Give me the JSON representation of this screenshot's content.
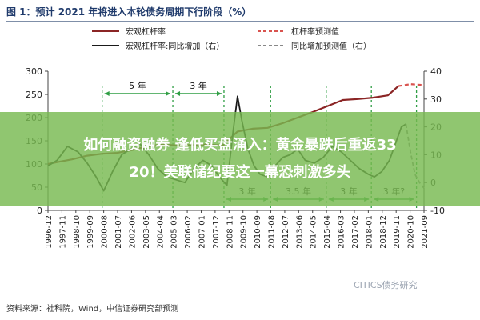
{
  "figure_title": "图 1：预计 2021 年将进入本轮债务周期下行阶段（%）",
  "source_note": "资料来源：社科院，Wind，中信证券研究部预测",
  "watermark": "CITICS债务研究",
  "banner": {
    "line1": "如何融资融券 逢低买盘涌入：黄金暴跌后重返33",
    "line2": "20！美联储纪要这一幕恐刺激多头"
  },
  "colors": {
    "leverage": "#8b2525",
    "leverage_forecast": "#d9534f",
    "yoy": "#1a1a1a",
    "yoy_forecast": "#888888",
    "cycle_marker": "#2f9e44",
    "banner": "#78b950"
  },
  "chart_data": {
    "type": "line",
    "x_ticks": [
      "1996-12",
      "1997-11",
      "1998-10",
      "1999-09",
      "2000-08",
      "2001-07",
      "2002-06",
      "2003-05",
      "2004-04",
      "2005-03",
      "2006-02",
      "2007-01",
      "2007-12",
      "2008-11",
      "2009-10",
      "2010-09",
      "2011-08",
      "2012-07",
      "2013-06",
      "2014-05",
      "2015-04",
      "2016-03",
      "2017-02",
      "2018-01",
      "2018-12",
      "2019-11",
      "2020-10",
      "2021-09"
    ],
    "y_left": {
      "min": 0,
      "max": 300,
      "ticks": [
        0,
        50,
        100,
        150,
        200,
        250,
        300
      ]
    },
    "y_right": {
      "min": -10,
      "max": 40,
      "ticks": [
        -10,
        0,
        10,
        20,
        30,
        40
      ]
    },
    "legend": [
      {
        "label": "宏观杠杆率",
        "style": "solid",
        "color": "#8b2525"
      },
      {
        "label": "杠杆率预测值",
        "style": "dashed",
        "color": "#d9534f"
      },
      {
        "label": "宏观杠杆率:同比增加（右）",
        "style": "solid",
        "color": "#1a1a1a"
      },
      {
        "label": "同比增加预测值（右）",
        "style": "dashed",
        "color": "#888888"
      }
    ],
    "series": [
      {
        "name": "宏观杠杆率",
        "axis": "left",
        "x": [
          1996.9,
          1997.5,
          1998.5,
          1999.5,
          2000.5,
          2001.5,
          2002.5,
          2003.5,
          2004.5,
          2005.5,
          2006.5,
          2007.5,
          2008.5,
          2009.5,
          2010.5,
          2011.5,
          2012.5,
          2013.5,
          2014.5,
          2015.5,
          2016.5,
          2017.5,
          2018.5,
          2019.5,
          2020.2
        ],
        "values": [
          100,
          104,
          110,
          118,
          122,
          124,
          130,
          138,
          142,
          140,
          141,
          142,
          140,
          170,
          176,
          178,
          188,
          200,
          212,
          225,
          238,
          240,
          243,
          248,
          268
        ]
      },
      {
        "name": "杠杆率预测值",
        "axis": "left",
        "x": [
          2020.2,
          2020.6,
          2021.0,
          2021.5,
          2021.9
        ],
        "values": [
          268,
          270,
          272,
          271,
          270
        ]
      },
      {
        "name": "宏观杠杆率:同比增加（右）",
        "axis": "right",
        "x": [
          1996.9,
          1997.5,
          1998.2,
          1998.9,
          1999.5,
          2000.1,
          2000.6,
          2001.2,
          2001.8,
          2002.4,
          2003.0,
          2003.6,
          2004.2,
          2004.8,
          2005.4,
          2006.0,
          2006.6,
          2007.2,
          2007.8,
          2008.3,
          2008.8,
          2009.2,
          2009.5,
          2009.8,
          2010.2,
          2010.6,
          2011.0,
          2011.5,
          2012.0,
          2012.5,
          2013.0,
          2013.5,
          2014.0,
          2014.6,
          2015.2,
          2015.8,
          2016.4,
          2017.0,
          2017.6,
          2018.2,
          2018.6,
          2019.1,
          2019.6,
          2020.0,
          2020.4,
          2020.7
        ],
        "values": [
          6,
          8,
          13,
          11,
          7,
          2,
          -3,
          4,
          10,
          12,
          14,
          10,
          5,
          2,
          1,
          0,
          5,
          8,
          6,
          2,
          -1,
          18,
          31,
          22,
          12,
          6,
          3,
          2,
          6,
          9,
          10,
          12,
          8,
          7,
          9,
          13,
          11,
          8,
          5,
          3,
          2,
          4,
          8,
          14,
          20,
          21
        ]
      },
      {
        "name": "同比增加预测值（右）",
        "axis": "right",
        "x": [
          2020.7,
          2021.0,
          2021.3,
          2021.6,
          2021.9
        ],
        "values": [
          21,
          11,
          3,
          0,
          -2
        ]
      }
    ],
    "cycle_labels": [
      {
        "text": "5 年",
        "x_from": 2000.5,
        "x_to": 2005.2,
        "level": "upper"
      },
      {
        "text": "3 年",
        "x_from": 2005.2,
        "x_to": 2008.6,
        "level": "upper"
      },
      {
        "text": "3 年",
        "x_from": 2008.6,
        "x_to": 2011.7,
        "level": "lower"
      },
      {
        "text": "3.5 年",
        "x_from": 2011.7,
        "x_to": 2015.4,
        "level": "lower"
      },
      {
        "text": "3 年",
        "x_from": 2015.4,
        "x_to": 2018.4,
        "level": "lower"
      },
      {
        "text": "3 年?",
        "x_from": 2018.4,
        "x_to": 2021.4,
        "level": "lower"
      }
    ],
    "cycle_dividers": [
      2000.5,
      2005.2,
      2008.6,
      2011.7,
      2015.4,
      2018.4,
      2021.4
    ]
  }
}
